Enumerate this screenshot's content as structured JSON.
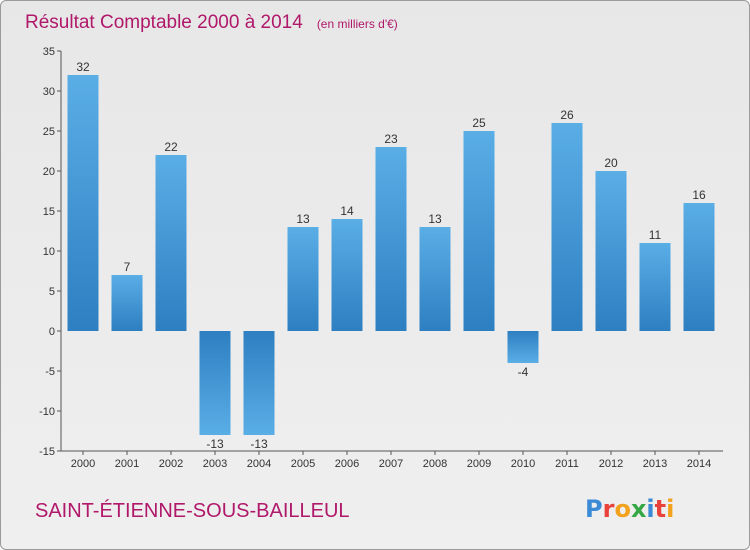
{
  "chart_data": {
    "type": "bar",
    "title": "Résultat Comptable 2000 à 2014",
    "subtitle": "(en milliers d'€)",
    "categories": [
      "2000",
      "2001",
      "2002",
      "2003",
      "2004",
      "2005",
      "2006",
      "2007",
      "2008",
      "2009",
      "2010",
      "2011",
      "2012",
      "2013",
      "2014"
    ],
    "values": [
      32,
      7,
      22,
      -13,
      -13,
      13,
      14,
      23,
      13,
      25,
      -4,
      26,
      20,
      11,
      16
    ],
    "data_labels": [
      "32",
      "7",
      "22",
      "-13",
      "-13",
      "13",
      "14",
      "23",
      "13",
      "25",
      "-4",
      "26",
      "20",
      "11",
      "16"
    ],
    "y_ticks": [
      35,
      30,
      25,
      20,
      15,
      10,
      5,
      0,
      -5,
      -10,
      -15
    ],
    "y_tick_labels": [
      "35",
      "30",
      "25",
      "20",
      "15",
      "10",
      "5",
      "0",
      "-5",
      "-10",
      "-15"
    ],
    "ylim": [
      -15,
      35
    ],
    "xlabel": "",
    "ylabel": "",
    "grid": false,
    "colors": {
      "bar_light": "#5aaee6",
      "bar_dark": "#2d7fc1"
    }
  },
  "footer": {
    "commune": "SAINT-ÉTIENNE-SOUS-BAILLEUL",
    "logo_letters": [
      "P",
      "r",
      "o",
      "x",
      "i",
      "t",
      "i"
    ],
    "logo_colors": [
      "#3a8ad6",
      "#e8423a",
      "#f2a21c",
      "#35a845",
      "#3a8ad6",
      "#e8423a",
      "#f2a21c"
    ]
  }
}
